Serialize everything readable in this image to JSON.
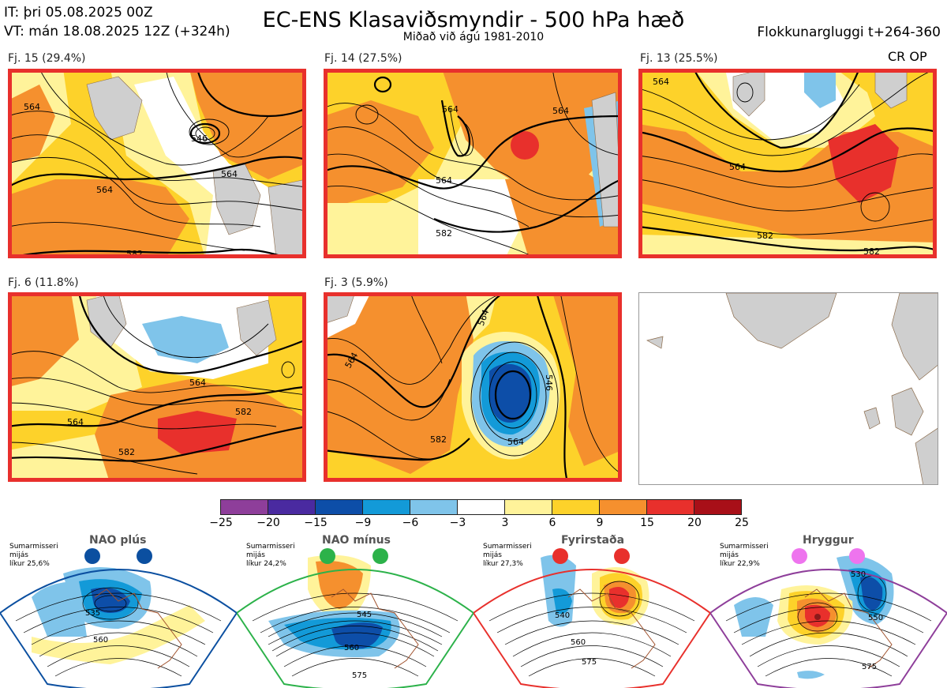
{
  "header": {
    "init_time": "IT: þri 05.08.2025 00Z",
    "valid_time": "VT: mán 18.08.2025 12Z  (+324h)",
    "title": "EC-ENS Klasaviðsmyndir - 500 hPa hæð",
    "subtitle": "Miðað við ágú 1981-2010",
    "window": "Flokkunargluggi t+264-360",
    "tag": "CR OP"
  },
  "clusters": [
    {
      "label": "Fj. 15 (29.4%)",
      "contours": [
        "564",
        "546",
        "564",
        "564",
        "582"
      ]
    },
    {
      "label": "Fj. 14 (27.5%)",
      "contours": [
        "564",
        "564",
        "582",
        "564"
      ]
    },
    {
      "label": "Fj. 13 (25.5%)",
      "contours": [
        "564",
        "564",
        "582",
        "582"
      ]
    },
    {
      "label": "Fj. 6 (11.8%)",
      "contours": [
        "564",
        "564",
        "582",
        "582"
      ]
    },
    {
      "label": "Fj. 3 (5.9%)",
      "contours": [
        "564",
        "564",
        "546",
        "564",
        "582"
      ]
    }
  ],
  "colorbar": {
    "colors": [
      "#8e3e9a",
      "#4a2aa0",
      "#0d4ea8",
      "#139ad8",
      "#7fc4ea",
      "#ffffff",
      "#fff39a",
      "#fdd22a",
      "#f5902e",
      "#e8302c",
      "#a80f18"
    ],
    "ticks": [
      "−25",
      "−20",
      "−15",
      "−9",
      "−6",
      "−3",
      "3",
      "6",
      "9",
      "15",
      "20",
      "25"
    ]
  },
  "regimes": [
    {
      "name": "NAO plús",
      "info": "Sumarmisseri\nmijás\nlíkur 25,6%",
      "dot_color": "#0b4fa0",
      "frame_color": "#0b4fa0",
      "contours": [
        "535",
        "560"
      ]
    },
    {
      "name": "NAO mínus",
      "info": "Sumarmisseri\nmijás\nlíkur 24,2%",
      "dot_color": "#2cb24a",
      "frame_color": "#2cb24a",
      "contours": [
        "545",
        "560",
        "575"
      ]
    },
    {
      "name": "Fyrirstaða",
      "info": "Sumarmisseri\nmijás\nlíkur 27,3%",
      "dot_color": "#e8302c",
      "frame_color": "#e8302c",
      "contours": [
        "540",
        "560",
        "575"
      ]
    },
    {
      "name": "Hryggur",
      "info": "Sumarmisseri\nmijás\nlíkur 22,9%",
      "dot_color": "#ee74ee",
      "frame_color": "#8e3e9a",
      "contours": [
        "530",
        "550",
        "575"
      ]
    }
  ]
}
